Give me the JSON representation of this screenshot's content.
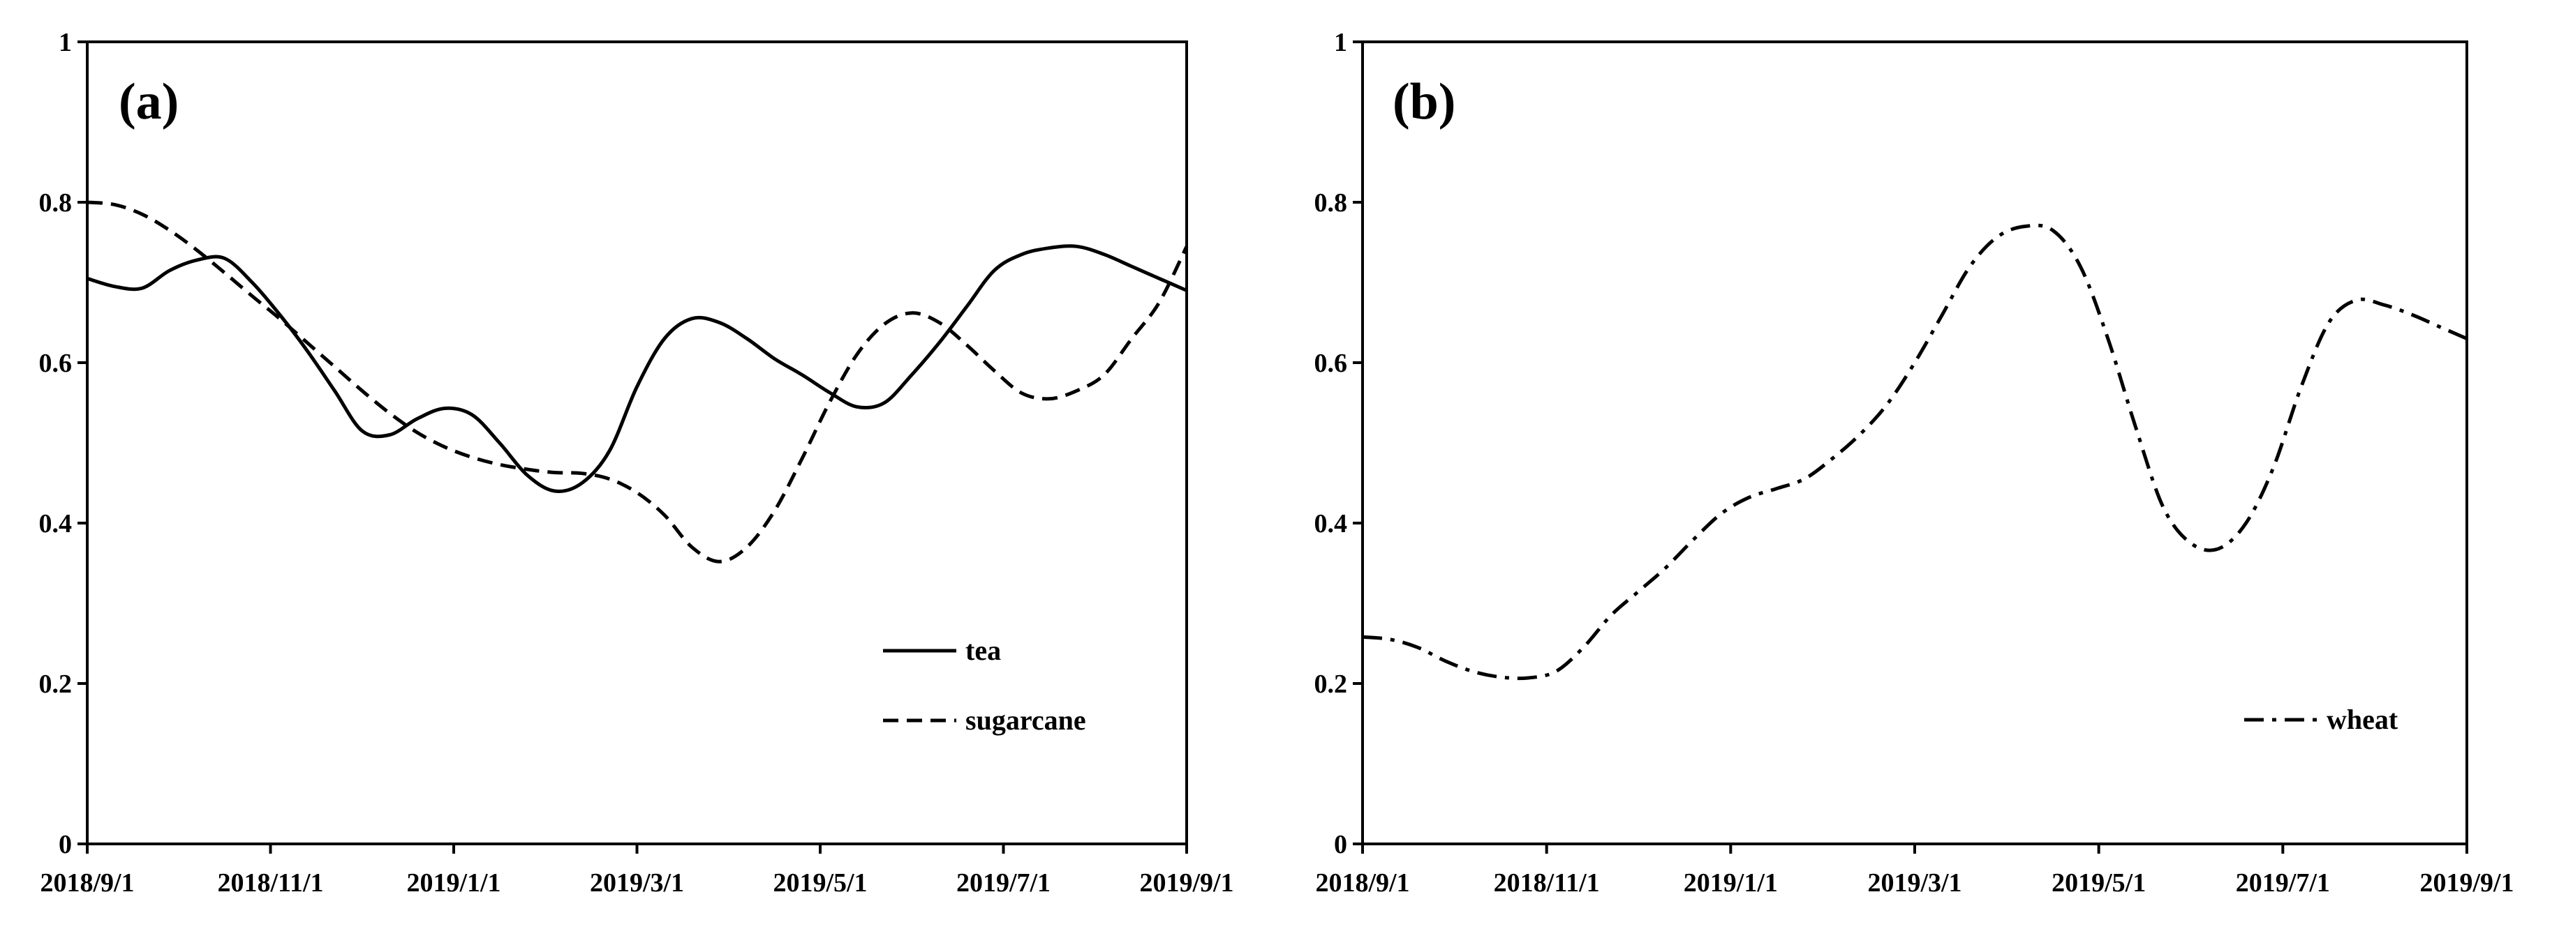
{
  "chart_data": [
    {
      "type": "line",
      "panel_label": "(a)",
      "x_unit": "months since 2018/9/1",
      "xlim": [
        0,
        12
      ],
      "ylim": [
        0,
        1
      ],
      "yticks": [
        0,
        0.2,
        0.4,
        0.6,
        0.8,
        1
      ],
      "ytick_labels": [
        "0",
        "0.2",
        "0.4",
        "0.6",
        "0.8",
        "1"
      ],
      "xticks": [
        0,
        2,
        4,
        6,
        8,
        10,
        12
      ],
      "xtick_labels": [
        "2018/9/1",
        "2018/11/1",
        "2019/1/1",
        "2019/3/1",
        "2019/5/1",
        "2019/7/1",
        "2019/9/1"
      ],
      "legend_position": "bottom-right",
      "series": [
        {
          "name": "tea",
          "style": "solid",
          "x": [
            0,
            0.3,
            0.6,
            0.9,
            1.2,
            1.5,
            1.8,
            2.1,
            2.4,
            2.7,
            3.0,
            3.3,
            3.6,
            3.9,
            4.2,
            4.5,
            4.8,
            5.1,
            5.4,
            5.7,
            6.0,
            6.3,
            6.6,
            6.9,
            7.2,
            7.5,
            7.8,
            8.1,
            8.4,
            8.7,
            9.0,
            9.3,
            9.6,
            9.9,
            10.2,
            10.5,
            10.8,
            11.1,
            11.4,
            11.7,
            12.0
          ],
          "y": [
            0.705,
            0.695,
            0.693,
            0.715,
            0.728,
            0.73,
            0.7,
            0.66,
            0.615,
            0.565,
            0.515,
            0.51,
            0.53,
            0.543,
            0.535,
            0.5,
            0.46,
            0.44,
            0.45,
            0.49,
            0.57,
            0.63,
            0.655,
            0.65,
            0.63,
            0.605,
            0.585,
            0.563,
            0.545,
            0.55,
            0.585,
            0.625,
            0.67,
            0.715,
            0.735,
            0.743,
            0.745,
            0.735,
            0.72,
            0.705,
            0.69
          ]
        },
        {
          "name": "sugarcane",
          "style": "dashed",
          "x": [
            0,
            0.3,
            0.6,
            0.9,
            1.2,
            1.5,
            1.8,
            2.1,
            2.4,
            2.7,
            3.0,
            3.3,
            3.6,
            3.9,
            4.2,
            4.5,
            4.8,
            5.1,
            5.4,
            5.7,
            6.0,
            6.3,
            6.6,
            6.9,
            7.2,
            7.5,
            7.8,
            8.1,
            8.4,
            8.7,
            9.0,
            9.3,
            9.6,
            9.9,
            10.2,
            10.5,
            10.8,
            11.1,
            11.4,
            11.7,
            12.0
          ],
          "y": [
            0.8,
            0.797,
            0.785,
            0.765,
            0.74,
            0.712,
            0.683,
            0.655,
            0.625,
            0.595,
            0.565,
            0.537,
            0.513,
            0.495,
            0.482,
            0.473,
            0.467,
            0.463,
            0.462,
            0.455,
            0.438,
            0.41,
            0.37,
            0.352,
            0.37,
            0.415,
            0.48,
            0.55,
            0.61,
            0.648,
            0.662,
            0.65,
            0.622,
            0.59,
            0.562,
            0.555,
            0.565,
            0.585,
            0.63,
            0.675,
            0.745
          ]
        }
      ]
    },
    {
      "type": "line",
      "panel_label": "(b)",
      "x_unit": "months since 2018/9/1",
      "xlim": [
        0,
        12
      ],
      "ylim": [
        0,
        1
      ],
      "yticks": [
        0,
        0.2,
        0.4,
        0.6,
        0.8,
        1
      ],
      "ytick_labels": [
        "0",
        "0.2",
        "0.4",
        "0.6",
        "0.8",
        "1"
      ],
      "xticks": [
        0,
        2,
        4,
        6,
        8,
        10,
        12
      ],
      "xtick_labels": [
        "2018/9/1",
        "2018/11/1",
        "2019/1/1",
        "2019/3/1",
        "2019/5/1",
        "2019/7/1",
        "2019/9/1"
      ],
      "legend_position": "bottom-right",
      "series": [
        {
          "name": "wheat",
          "style": "dashdot",
          "x": [
            0,
            0.3,
            0.6,
            0.9,
            1.2,
            1.5,
            1.8,
            2.1,
            2.4,
            2.7,
            3.0,
            3.3,
            3.6,
            3.9,
            4.2,
            4.5,
            4.8,
            5.1,
            5.4,
            5.7,
            6.0,
            6.3,
            6.6,
            6.9,
            7.2,
            7.5,
            7.8,
            8.1,
            8.4,
            8.7,
            9.0,
            9.3,
            9.6,
            9.9,
            10.2,
            10.5,
            10.8,
            11.1,
            11.4,
            11.7,
            12.0
          ],
          "y": [
            0.258,
            0.255,
            0.245,
            0.228,
            0.215,
            0.208,
            0.207,
            0.215,
            0.245,
            0.285,
            0.315,
            0.345,
            0.38,
            0.412,
            0.432,
            0.443,
            0.455,
            0.48,
            0.51,
            0.548,
            0.6,
            0.66,
            0.72,
            0.757,
            0.77,
            0.765,
            0.72,
            0.63,
            0.52,
            0.42,
            0.375,
            0.368,
            0.4,
            0.47,
            0.57,
            0.65,
            0.678,
            0.672,
            0.66,
            0.645,
            0.63
          ]
        }
      ]
    }
  ]
}
